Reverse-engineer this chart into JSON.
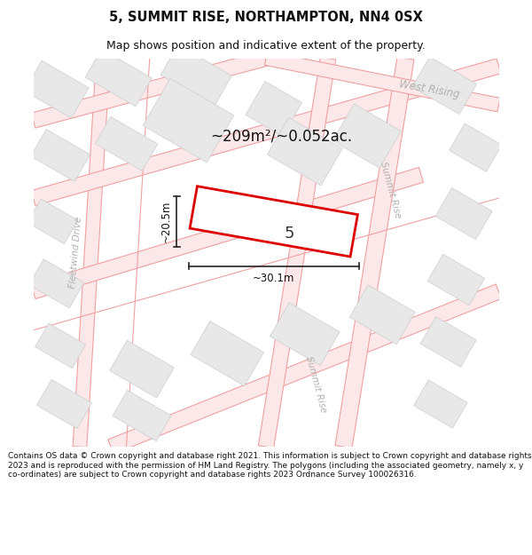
{
  "title": "5, SUMMIT RISE, NORTHAMPTON, NN4 0SX",
  "subtitle": "Map shows position and indicative extent of the property.",
  "area_text": "~209m²/~0.052ac.",
  "dim_width": "~30.1m",
  "dim_height": "~20.5m",
  "property_label": "5",
  "footer": "Contains OS data © Crown copyright and database right 2021. This information is subject to Crown copyright and database rights 2023 and is reproduced with the permission of HM Land Registry. The polygons (including the associated geometry, namely x, y co-ordinates) are subject to Crown copyright and database rights 2023 Ordnance Survey 100026316.",
  "bg_color": "#ffffff",
  "map_bg": "#ffffff",
  "building_fill": "#e8e8e8",
  "building_edge": "#cccccc",
  "road_color": "#f0a0a0",
  "road_fill": "#fce8e8",
  "highlight_color": "#dd0000",
  "title_fontsize": 10.5,
  "subtitle_fontsize": 9,
  "footer_fontsize": 6.5,
  "street_label_color": "#b0b0b0",
  "street_label_fontsize": 7.5
}
